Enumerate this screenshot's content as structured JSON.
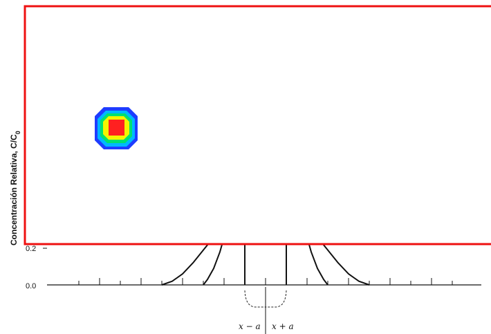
{
  "chart_data": {
    "type": "line",
    "title": "",
    "xlabel": "",
    "ylabel": "Concentración Relativa, C/C",
    "ylabel_subscript": "0",
    "ylim": [
      0,
      1
    ],
    "ytick_labels": [
      "0.0",
      "0.2"
    ],
    "x_annotations": [
      "x − a",
      "x + a"
    ],
    "series": [
      {
        "x": [
          -5,
          -4.5,
          -4,
          -3.5,
          -3,
          -2.5,
          -2,
          -1.5
        ],
        "y": [
          0,
          0.02,
          0.06,
          0.12,
          0.19,
          0.26,
          0.34,
          0.42
        ]
      },
      {
        "x": [
          -3,
          -2.8,
          -2.5,
          -2.2,
          -2,
          -1.8
        ],
        "y": [
          0,
          0.03,
          0.09,
          0.18,
          0.26,
          0.36
        ]
      },
      {
        "x": [
          -1,
          -1,
          1,
          1
        ],
        "y": [
          0,
          0.5,
          0.5,
          0
        ]
      },
      {
        "x": [
          1.8,
          2,
          2.2,
          2.5,
          2.8,
          3
        ],
        "y": [
          0.36,
          0.26,
          0.18,
          0.09,
          0.03,
          0
        ]
      },
      {
        "x": [
          1.5,
          2,
          2.5,
          3,
          3.5,
          4,
          4.5,
          5
        ],
        "y": [
          0.42,
          0.34,
          0.26,
          0.19,
          0.12,
          0.06,
          0.02,
          0
        ]
      }
    ]
  },
  "overlay": {
    "frame_color": "#ee1111",
    "blob_colors": [
      "#1e3cff",
      "#00b8ff",
      "#00e070",
      "#f4f400",
      "#ff2020"
    ]
  }
}
